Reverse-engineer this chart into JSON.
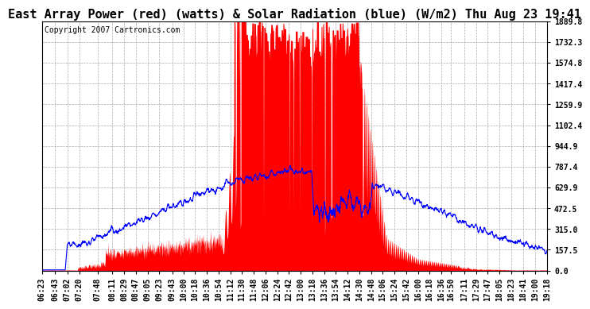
{
  "title": "East Array Power (red) (watts) & Solar Radiation (blue) (W/m2) Thu Aug 23 19:41",
  "copyright": "Copyright 2007 Cartronics.com",
  "ymax": 1889.8,
  "ymin": 0.0,
  "yticks": [
    0.0,
    157.5,
    315.0,
    472.5,
    629.9,
    787.4,
    944.9,
    1102.4,
    1259.9,
    1417.4,
    1574.8,
    1732.3,
    1889.8
  ],
  "background_color": "#ffffff",
  "grid_color": "#aaaaaa",
  "red_color": "#ff0000",
  "blue_color": "#0000ff",
  "title_fontsize": 11,
  "copyright_fontsize": 7,
  "tick_fontsize": 7,
  "xtick_labels": [
    "06:23",
    "06:43",
    "07:02",
    "07:20",
    "07:48",
    "08:11",
    "08:29",
    "08:47",
    "09:05",
    "09:23",
    "09:43",
    "10:00",
    "10:18",
    "10:36",
    "10:54",
    "11:12",
    "11:30",
    "11:48",
    "12:06",
    "12:24",
    "12:42",
    "13:00",
    "13:18",
    "13:36",
    "13:54",
    "14:12",
    "14:30",
    "14:48",
    "15:06",
    "15:24",
    "15:42",
    "16:00",
    "16:18",
    "16:36",
    "16:50",
    "17:11",
    "17:29",
    "17:47",
    "18:05",
    "18:23",
    "18:41",
    "19:00",
    "19:18"
  ]
}
